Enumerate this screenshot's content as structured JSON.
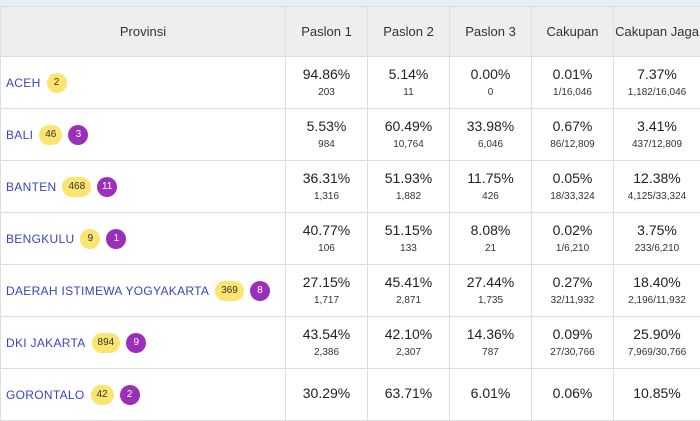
{
  "table": {
    "headers": {
      "provinsi": "Provinsi",
      "paslon1": "Paslon 1",
      "paslon2": "Paslon 2",
      "paslon3": "Paslon 3",
      "cakupan": "Cakupan",
      "cakupan_jaga": "Cakupan Jaga"
    },
    "rows": [
      {
        "name": "ACEH",
        "yellow": "2",
        "purple": null,
        "p1": "94.86%",
        "p1c": "203",
        "p2": "5.14%",
        "p2c": "11",
        "p3": "0.00%",
        "p3c": "0",
        "cak": "0.01%",
        "cakc": "1/16,046",
        "jaga": "7.37%",
        "jagac": "1,182/16,046"
      },
      {
        "name": "BALI",
        "yellow": "46",
        "purple": "3",
        "p1": "5.53%",
        "p1c": "984",
        "p2": "60.49%",
        "p2c": "10,764",
        "p3": "33.98%",
        "p3c": "6,046",
        "cak": "0.67%",
        "cakc": "86/12,809",
        "jaga": "3.41%",
        "jagac": "437/12,809"
      },
      {
        "name": "BANTEN",
        "yellow": "468",
        "purple": "11",
        "p1": "36.31%",
        "p1c": "1,316",
        "p2": "51.93%",
        "p2c": "1,882",
        "p3": "11.75%",
        "p3c": "426",
        "cak": "0.05%",
        "cakc": "18/33,324",
        "jaga": "12.38%",
        "jagac": "4,125/33,324"
      },
      {
        "name": "BENGKULU",
        "yellow": "9",
        "purple": "1",
        "p1": "40.77%",
        "p1c": "106",
        "p2": "51.15%",
        "p2c": "133",
        "p3": "8.08%",
        "p3c": "21",
        "cak": "0.02%",
        "cakc": "1/6,210",
        "jaga": "3.75%",
        "jagac": "233/6,210"
      },
      {
        "name": "DAERAH ISTIMEWA YOGYAKARTA",
        "yellow": "369",
        "purple": "8",
        "p1": "27.15%",
        "p1c": "1,717",
        "p2": "45.41%",
        "p2c": "2,871",
        "p3": "27.44%",
        "p3c": "1,735",
        "cak": "0.27%",
        "cakc": "32/11,932",
        "jaga": "18.40%",
        "jagac": "2,196/11,932"
      },
      {
        "name": "DKI JAKARTA",
        "yellow": "894",
        "purple": "9",
        "p1": "43.54%",
        "p1c": "2,386",
        "p2": "42.10%",
        "p2c": "2,307",
        "p3": "14.36%",
        "p3c": "787",
        "cak": "0.09%",
        "cakc": "27/30,766",
        "jaga": "25.90%",
        "jagac": "7,969/30,766"
      },
      {
        "name": "GORONTALO",
        "yellow": "42",
        "purple": "2",
        "p1": "30.29%",
        "p1c": "",
        "p2": "63.71%",
        "p2c": "",
        "p3": "6.01%",
        "p3c": "",
        "cak": "0.06%",
        "cakc": "",
        "jaga": "10.85%",
        "jagac": ""
      }
    ]
  },
  "colors": {
    "header_bg": "#eeeeee",
    "link": "#3a43c5",
    "badge_yellow": "#fbe470",
    "badge_purple": "#9c2fb8"
  }
}
